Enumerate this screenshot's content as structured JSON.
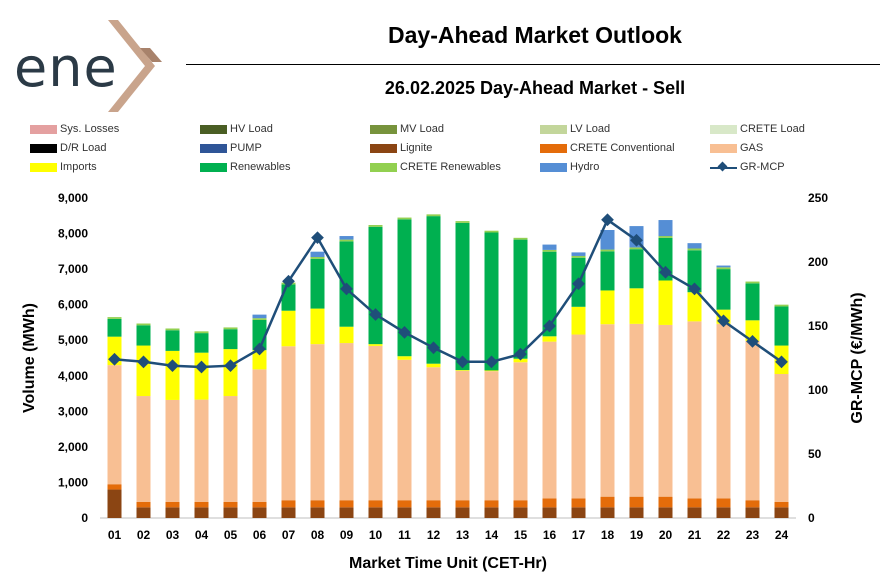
{
  "brand": {
    "logo_text": "ene",
    "chevron_colors": [
      "#c9a48c",
      "#a8826b"
    ]
  },
  "header": {
    "title": "Day-Ahead Market Outlook",
    "subtitle": "26.02.2025  Day-Ahead Market - Sell"
  },
  "chart_data": {
    "type": "bar",
    "stacked": true,
    "categories": [
      "01",
      "02",
      "03",
      "04",
      "05",
      "06",
      "07",
      "08",
      "09",
      "10",
      "11",
      "12",
      "13",
      "14",
      "15",
      "16",
      "17",
      "18",
      "19",
      "20",
      "21",
      "22",
      "23",
      "24"
    ],
    "xlabel": "Market Time Unit (CET-Hr)",
    "ylabel": "Volume (MWh)",
    "y2label": "GR-MCP (€/MWh)",
    "ylim": [
      0,
      9000
    ],
    "y_ticks": [
      "0",
      "1,000",
      "2,000",
      "3,000",
      "4,000",
      "5,000",
      "6,000",
      "7,000",
      "8,000",
      "9,000"
    ],
    "y2lim": [
      0,
      250
    ],
    "y2_ticks": [
      "0",
      "50",
      "100",
      "150",
      "200",
      "250"
    ],
    "grid": false,
    "legend_position": "top",
    "series": [
      {
        "name": "Sys. Losses",
        "color": "#e4a0a0",
        "values": [
          0,
          0,
          0,
          0,
          0,
          0,
          0,
          0,
          0,
          0,
          0,
          0,
          0,
          0,
          0,
          0,
          0,
          0,
          0,
          0,
          0,
          0,
          0,
          0
        ]
      },
      {
        "name": "HV Load",
        "color": "#4a5e24",
        "values": [
          0,
          0,
          0,
          0,
          0,
          0,
          0,
          0,
          0,
          0,
          0,
          0,
          0,
          0,
          0,
          0,
          0,
          0,
          0,
          0,
          0,
          0,
          0,
          0
        ]
      },
      {
        "name": "MV Load",
        "color": "#77933c",
        "values": [
          0,
          0,
          0,
          0,
          0,
          0,
          0,
          0,
          0,
          0,
          0,
          0,
          0,
          0,
          0,
          0,
          0,
          0,
          0,
          0,
          0,
          0,
          0,
          0
        ]
      },
      {
        "name": "LV Load",
        "color": "#c3d69b",
        "values": [
          0,
          0,
          0,
          0,
          0,
          0,
          0,
          0,
          0,
          0,
          0,
          0,
          0,
          0,
          0,
          0,
          0,
          0,
          0,
          0,
          0,
          0,
          0,
          0
        ]
      },
      {
        "name": "CRETE Load",
        "color": "#d8e8c8",
        "values": [
          0,
          0,
          0,
          0,
          0,
          0,
          0,
          0,
          0,
          0,
          0,
          0,
          0,
          0,
          0,
          0,
          0,
          0,
          0,
          0,
          0,
          0,
          0,
          0
        ]
      },
      {
        "name": "D/R Load",
        "color": "#000000",
        "values": [
          0,
          0,
          0,
          0,
          0,
          0,
          0,
          0,
          0,
          0,
          0,
          0,
          0,
          0,
          0,
          0,
          0,
          0,
          0,
          0,
          0,
          0,
          0,
          0
        ]
      },
      {
        "name": "PUMP",
        "color": "#2f5597",
        "values": [
          0,
          0,
          0,
          0,
          0,
          0,
          0,
          0,
          0,
          0,
          0,
          0,
          0,
          0,
          0,
          0,
          0,
          0,
          0,
          0,
          0,
          0,
          0,
          0
        ]
      },
      {
        "name": "Lignite",
        "color": "#8b4513",
        "values": [
          800,
          300,
          300,
          300,
          300,
          300,
          300,
          300,
          300,
          300,
          300,
          300,
          300,
          300,
          300,
          300,
          300,
          300,
          300,
          300,
          300,
          300,
          300,
          300
        ]
      },
      {
        "name": "CRETE Conventional",
        "color": "#e46c0a",
        "values": [
          150,
          150,
          150,
          150,
          150,
          150,
          200,
          200,
          200,
          200,
          200,
          200,
          200,
          200,
          200,
          250,
          250,
          300,
          300,
          300,
          250,
          250,
          200,
          150
        ]
      },
      {
        "name": "GAS",
        "color": "#f8bf93",
        "values": [
          3350,
          2980,
          2870,
          2880,
          2980,
          3730,
          4330,
          4390,
          4420,
          4340,
          3950,
          3740,
          3640,
          3630,
          3880,
          4410,
          4610,
          4850,
          4860,
          4830,
          4980,
          4910,
          4480,
          3600
        ]
      },
      {
        "name": "Imports",
        "color": "#ffff00",
        "values": [
          800,
          1420,
          1380,
          1320,
          1320,
          540,
          1000,
          1000,
          460,
          50,
          100,
          100,
          20,
          20,
          100,
          150,
          780,
          950,
          1000,
          1250,
          820,
          400,
          580,
          800
        ]
      },
      {
        "name": "Renewables",
        "color": "#00b050",
        "values": [
          500,
          570,
          580,
          550,
          560,
          850,
          740,
          1400,
          2400,
          3300,
          3850,
          4150,
          4140,
          3880,
          3350,
          2380,
          1380,
          1100,
          1100,
          1200,
          1180,
          1140,
          1040,
          1100
        ]
      },
      {
        "name": "CRETE Renewables",
        "color": "#92d050",
        "values": [
          50,
          50,
          50,
          50,
          50,
          50,
          50,
          50,
          50,
          50,
          50,
          50,
          50,
          50,
          50,
          50,
          50,
          50,
          50,
          50,
          50,
          50,
          50,
          50
        ]
      },
      {
        "name": "Hydro",
        "color": "#558ed5",
        "values": [
          0,
          0,
          0,
          0,
          0,
          100,
          0,
          150,
          100,
          0,
          0,
          0,
          0,
          0,
          0,
          150,
          100,
          550,
          600,
          450,
          150,
          50,
          0,
          0
        ]
      }
    ],
    "line": {
      "name": "GR-MCP",
      "color": "#1f4e79",
      "values": [
        124,
        122,
        119,
        118,
        119,
        132,
        185,
        219,
        179,
        159,
        145,
        133,
        122,
        122,
        128,
        150,
        183,
        233,
        217,
        192,
        179,
        154,
        138,
        122
      ]
    }
  }
}
